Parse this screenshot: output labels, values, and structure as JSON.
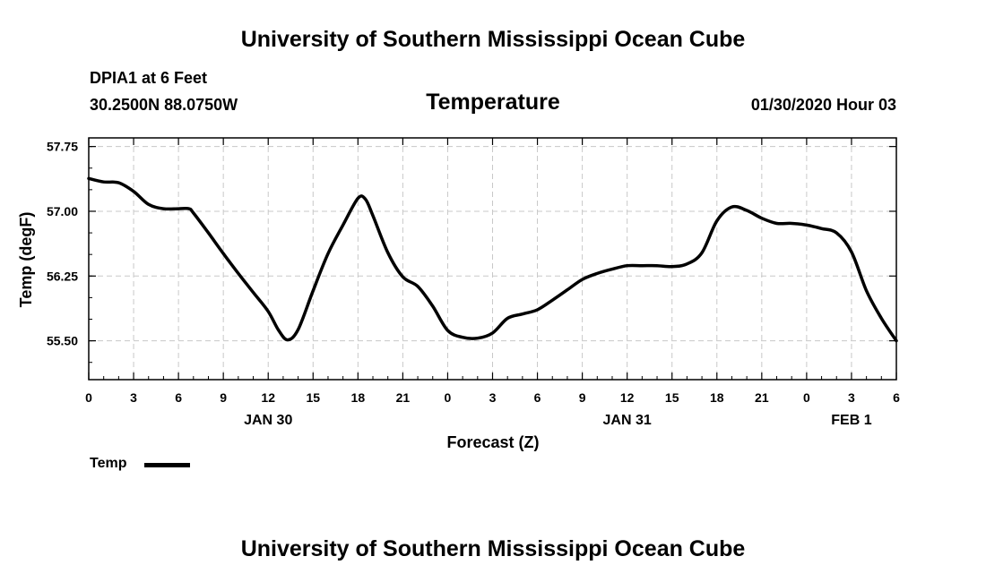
{
  "header": {
    "title": "University of Southern Mississippi Ocean Cube",
    "station": "DPIA1 at 6 Feet",
    "coords": "30.2500N 88.0750W",
    "datetime": "01/30/2020 Hour 03"
  },
  "footer": {
    "title": "University of Southern Mississippi Ocean Cube"
  },
  "chart_data": {
    "type": "line",
    "title": "Temperature",
    "xlabel": "Forecast (Z)",
    "ylabel": "Temp (degF)",
    "x_unit": "hours from 01/30 00Z",
    "xlim": [
      0,
      54
    ],
    "ylim": [
      55.05,
      57.85
    ],
    "grid": true,
    "legend_position": "bottom-left",
    "x_ticks": [
      {
        "pos": 0,
        "label": "0"
      },
      {
        "pos": 3,
        "label": "3"
      },
      {
        "pos": 6,
        "label": "6"
      },
      {
        "pos": 9,
        "label": "9"
      },
      {
        "pos": 12,
        "label": "12"
      },
      {
        "pos": 15,
        "label": "15"
      },
      {
        "pos": 18,
        "label": "18"
      },
      {
        "pos": 21,
        "label": "21"
      },
      {
        "pos": 24,
        "label": "0"
      },
      {
        "pos": 27,
        "label": "3"
      },
      {
        "pos": 30,
        "label": "6"
      },
      {
        "pos": 33,
        "label": "9"
      },
      {
        "pos": 36,
        "label": "12"
      },
      {
        "pos": 39,
        "label": "15"
      },
      {
        "pos": 42,
        "label": "18"
      },
      {
        "pos": 45,
        "label": "21"
      },
      {
        "pos": 48,
        "label": "0"
      },
      {
        "pos": 51,
        "label": "3"
      },
      {
        "pos": 54,
        "label": "6"
      }
    ],
    "date_labels": [
      {
        "pos": 12,
        "label": "JAN 30"
      },
      {
        "pos": 36,
        "label": "JAN 31"
      },
      {
        "pos": 51,
        "label": "FEB 1"
      }
    ],
    "y_ticks": [
      {
        "value": 55.5,
        "label": "55.50"
      },
      {
        "value": 56.25,
        "label": "56.25"
      },
      {
        "value": 57.0,
        "label": "57.00"
      },
      {
        "value": 57.75,
        "label": "57.75"
      }
    ],
    "series": [
      {
        "name": "Temp",
        "color": "#000000",
        "x": [
          0,
          1,
          2,
          3,
          4,
          5,
          6,
          6.7,
          7,
          8,
          9,
          10,
          11,
          12,
          12.7,
          13.3,
          14,
          15,
          16,
          17,
          18,
          18.5,
          19,
          20,
          21,
          22,
          23,
          24,
          25,
          26,
          27,
          28,
          29,
          30,
          31,
          32,
          33,
          34,
          35,
          36,
          37,
          38,
          39,
          40,
          41,
          42,
          43,
          44,
          45,
          46,
          47,
          48,
          49,
          50,
          51,
          52,
          53,
          54
        ],
        "y": [
          57.38,
          57.34,
          57.33,
          57.23,
          57.08,
          57.03,
          57.03,
          57.03,
          56.98,
          56.75,
          56.51,
          56.28,
          56.06,
          55.84,
          55.62,
          55.51,
          55.63,
          56.08,
          56.51,
          56.84,
          57.15,
          57.14,
          56.95,
          56.52,
          56.24,
          56.13,
          55.9,
          55.62,
          55.54,
          55.53,
          55.59,
          55.76,
          55.81,
          55.86,
          55.97,
          56.09,
          56.21,
          56.28,
          56.33,
          56.37,
          56.37,
          56.37,
          56.36,
          56.39,
          56.52,
          56.89,
          57.05,
          57.01,
          56.92,
          56.86,
          56.86,
          56.84,
          56.8,
          56.75,
          56.53,
          56.08,
          55.76,
          55.5
        ]
      }
    ]
  }
}
